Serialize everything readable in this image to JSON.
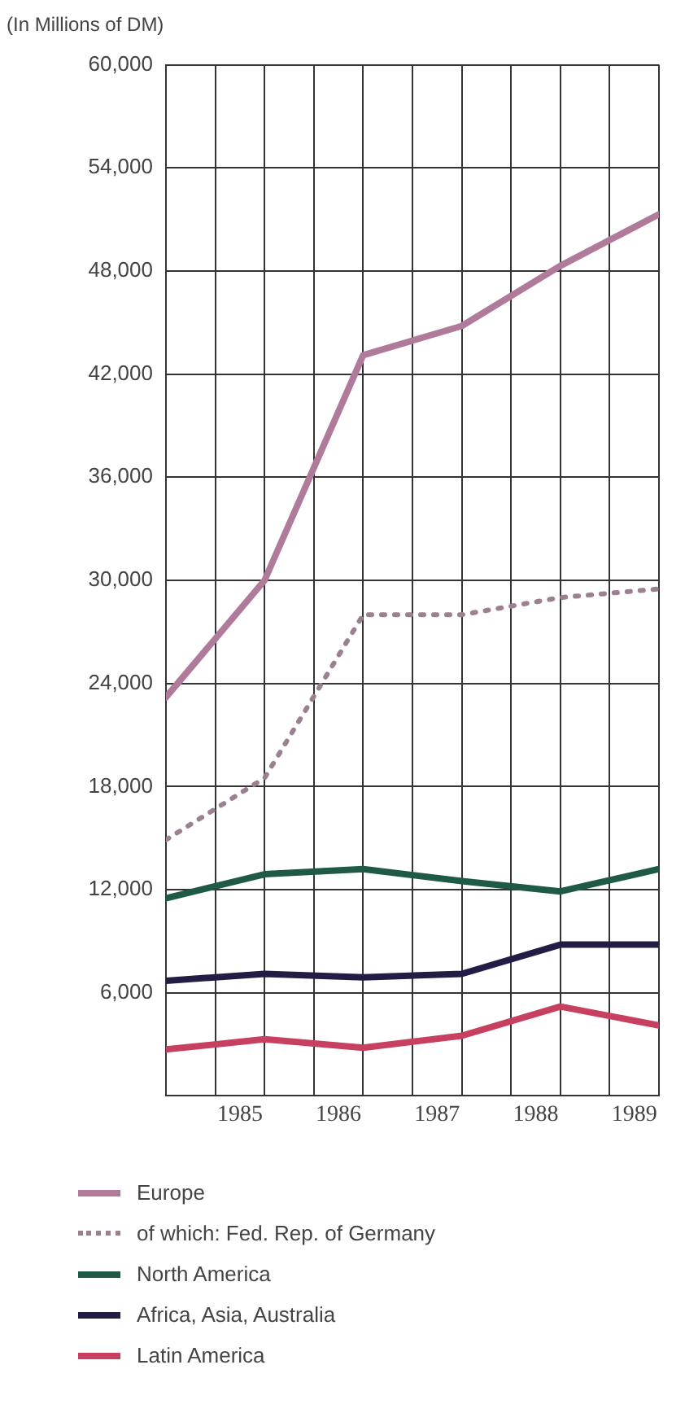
{
  "chart_data": {
    "type": "line",
    "ylabel": "(In Millions of DM)",
    "x": [
      1984.25,
      1985.25,
      1986.25,
      1987.25,
      1988.25,
      1989.25
    ],
    "xlim": [
      1984.25,
      1989.25
    ],
    "xticks": [
      {
        "value": 1984.75,
        "label": null
      },
      1985,
      {
        "value": 1985.25,
        "label": null
      },
      {
        "value": 1985.75,
        "label": null
      },
      1986,
      {
        "value": 1986.25,
        "label": null
      },
      {
        "value": 1986.75,
        "label": null
      },
      1987,
      {
        "value": 1987.25,
        "label": null
      },
      {
        "value": 1987.75,
        "label": null
      },
      1988,
      {
        "value": 1988.25,
        "label": null
      },
      {
        "value": 1988.75,
        "label": null
      },
      1989,
      {
        "value": 1989.25,
        "label": null
      }
    ],
    "ylim": [
      0,
      60000
    ],
    "yticks": [
      {
        "value": 0,
        "label": null
      },
      {
        "value": 6000,
        "label": "6,000"
      },
      {
        "value": 12000,
        "label": "12,000"
      },
      {
        "value": 18000,
        "label": "18,000"
      },
      {
        "value": 24000,
        "label": "24,000"
      },
      {
        "value": 30000,
        "label": "30,000"
      },
      {
        "value": 36000,
        "label": "36,000"
      },
      {
        "value": 42000,
        "label": "42,000"
      },
      {
        "value": 48000,
        "label": "48,000"
      },
      {
        "value": 54000,
        "label": "54,000"
      },
      {
        "value": 60000,
        "label": "60,000"
      }
    ],
    "grid": true,
    "legend": "bottom",
    "marker": "none",
    "series": [
      {
        "name": "Europe",
        "color": "#b07a9a",
        "values": [
          23200,
          30000,
          43100,
          44800,
          48300,
          51300
        ]
      },
      {
        "name": "of which: Fed. Rep. of Germany",
        "color": "#9a8090",
        "line_style": "dotted",
        "values": [
          14900,
          18500,
          28000,
          28000,
          29000,
          29500
        ]
      },
      {
        "name": "North America",
        "color": "#1f5a45",
        "values": [
          11500,
          12900,
          13200,
          12500,
          11900,
          13200
        ]
      },
      {
        "name": "Africa, Asia, Australia",
        "color": "#231d45",
        "values": [
          6700,
          7100,
          6900,
          7100,
          8800,
          8800
        ]
      },
      {
        "name": "Latin America",
        "color": "#c8405f",
        "values": [
          2700,
          3300,
          2800,
          3500,
          5200,
          4100
        ]
      }
    ]
  }
}
